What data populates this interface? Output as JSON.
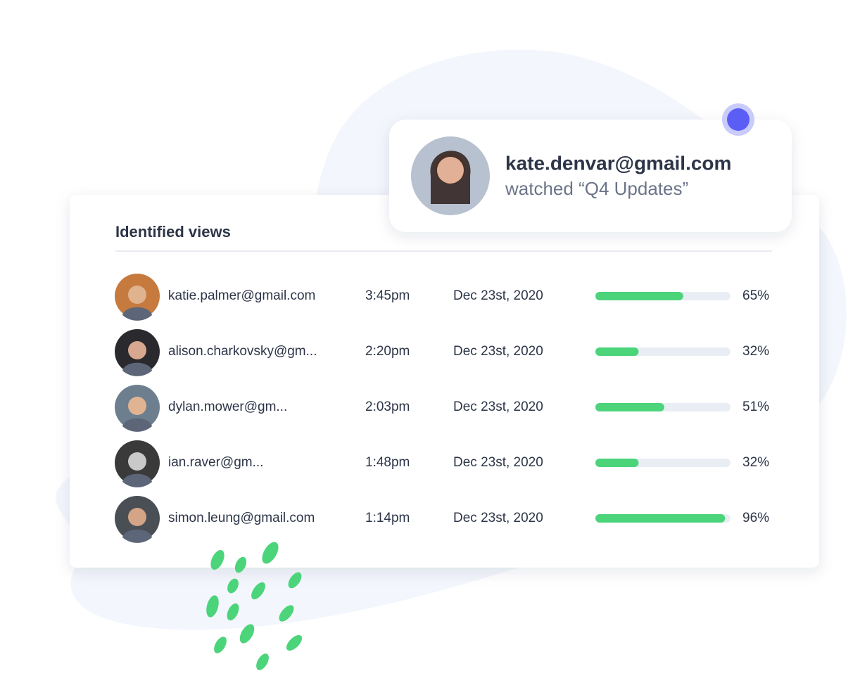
{
  "notification": {
    "email": "kate.denvar@gmail.com",
    "message": "watched “Q4 Updates”"
  },
  "table": {
    "title": "Identified views",
    "rows": [
      {
        "email": "katie.palmer@gmail.com",
        "time": "3:45pm",
        "date": "Dec 23st, 2020",
        "progress": 65,
        "progress_label": "65%"
      },
      {
        "email": "alison.charkovsky@gm...",
        "time": "2:20pm",
        "date": "Dec 23st, 2020",
        "progress": 32,
        "progress_label": "32%"
      },
      {
        "email": "dylan.mower@gm...",
        "time": "2:03pm",
        "date": "Dec 23st, 2020",
        "progress": 51,
        "progress_label": "51%"
      },
      {
        "email": "ian.raver@gm...",
        "time": "1:48pm",
        "date": "Dec 23st, 2020",
        "progress": 32,
        "progress_label": "32%"
      },
      {
        "email": "simon.leung@gmail.com",
        "time": "1:14pm",
        "date": "Dec 23st, 2020",
        "progress": 96,
        "progress_label": "96%"
      }
    ]
  }
}
